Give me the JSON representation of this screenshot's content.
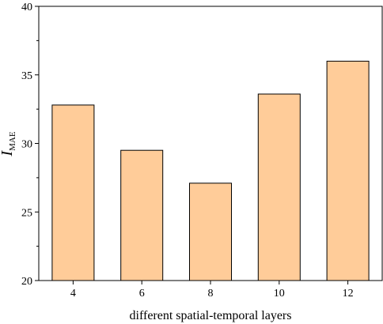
{
  "chart_data": {
    "type": "bar",
    "title": "",
    "categories": [
      "4",
      "6",
      "8",
      "10",
      "12"
    ],
    "values": [
      32.8,
      29.5,
      27.1,
      33.6,
      36.0
    ],
    "xlabel": "different spatial-temporal layers",
    "ylabel_main": "I",
    "ylabel_sub": "MAE",
    "ylim": [
      20,
      40
    ],
    "yticks": [
      "20",
      "25",
      "30",
      "35",
      "40"
    ],
    "grid": false,
    "colors": {
      "bar_fill": "#FFCC99",
      "bar_stroke": "#000000",
      "axis": "#000000"
    }
  }
}
